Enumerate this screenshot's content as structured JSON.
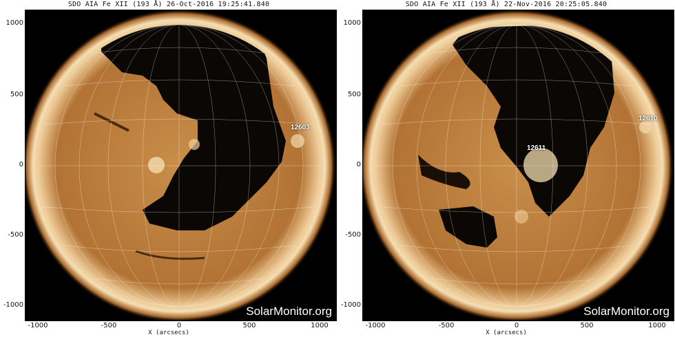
{
  "colors": {
    "corona_core": "#f3d6a4",
    "corona_mid": "#c48a44",
    "corona_edge": "#6a3a12",
    "coronal_hole": "#0a0704",
    "grid": "#ffffff",
    "background": "#000000"
  },
  "panels": [
    {
      "title": "SDO AIA Fe XII (193 Å) 26-Oct-2016 19:25:41.840",
      "active_regions": [
        "12603"
      ],
      "y_ticks": [
        "1000",
        "500",
        "0",
        "-500",
        "-1000"
      ],
      "x_ticks": [
        "-1000",
        "-500",
        "0",
        "500",
        "1000"
      ],
      "x_label": "X (arcsecs)",
      "watermark": "SolarMonitor.org"
    },
    {
      "title": "SDO AIA Fe XII (193 Å) 22-Nov-2016 20:25:05.840",
      "active_regions": [
        "12611",
        "12610"
      ],
      "y_ticks": [
        "1000",
        "500",
        "0",
        "-500",
        "-1000"
      ],
      "x_ticks": [
        "-1000",
        "-500",
        "0",
        "500",
        "1000"
      ],
      "x_label": "X (arcsecs)",
      "watermark": "SolarMonitor.org"
    }
  ]
}
